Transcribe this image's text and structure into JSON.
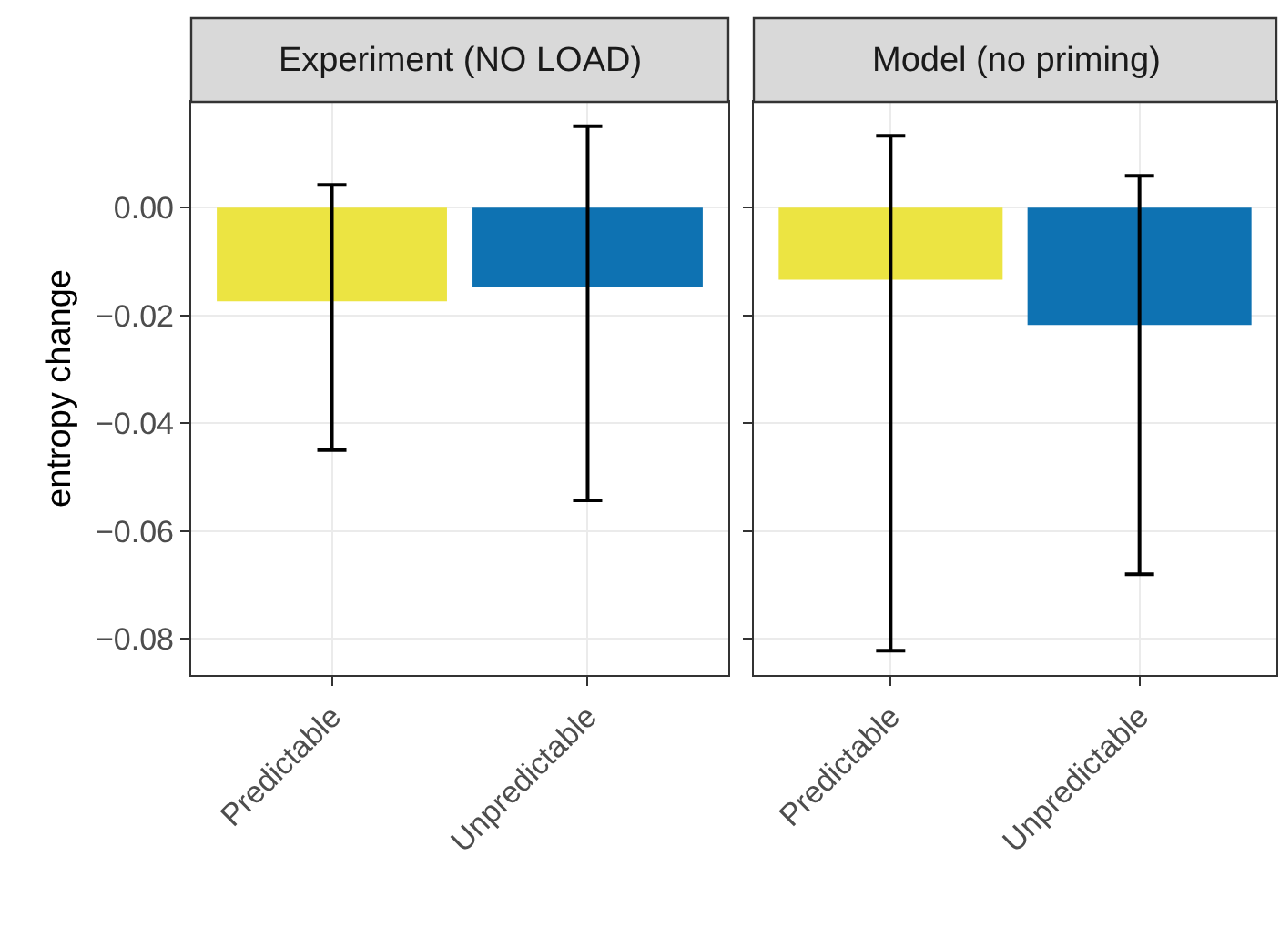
{
  "chart_data": [
    {
      "type": "bar",
      "title": "Experiment (NO LOAD)",
      "ylabel": "entropy change",
      "categories": [
        "Predictable",
        "Unpredictable"
      ],
      "values": [
        -0.0174,
        -0.0147
      ],
      "errors": [
        [
          -0.045,
          0.0042
        ],
        [
          -0.0543,
          0.0151
        ]
      ],
      "colors": [
        "#ece442",
        "#0e72b2"
      ],
      "ylim": [
        -0.0867,
        0.0196
      ],
      "yticks": [
        {
          "value": 0,
          "label": "0.00"
        },
        {
          "value": -0.02,
          "label": "−0.02"
        },
        {
          "value": -0.04,
          "label": "−0.04"
        },
        {
          "value": -0.06,
          "label": "−0.06"
        },
        {
          "value": -0.08,
          "label": "−0.08"
        }
      ],
      "grid": true
    },
    {
      "type": "bar",
      "title": "Model (no priming)",
      "categories": [
        "Predictable",
        "Unpredictable"
      ],
      "values": [
        -0.0134,
        -0.0218
      ],
      "errors": [
        [
          -0.0822,
          0.0133
        ],
        [
          -0.068,
          0.0059
        ]
      ],
      "colors": [
        "#ece442",
        "#0e72b2"
      ],
      "ylim": [
        -0.0867,
        0.0196
      ],
      "yticks": [
        {
          "value": 0,
          "label": null
        },
        {
          "value": -0.02,
          "label": null
        },
        {
          "value": -0.04,
          "label": null
        },
        {
          "value": -0.06,
          "label": null
        },
        {
          "value": -0.08,
          "label": null
        }
      ],
      "grid": true,
      "tick_labels": "x"
    }
  ]
}
